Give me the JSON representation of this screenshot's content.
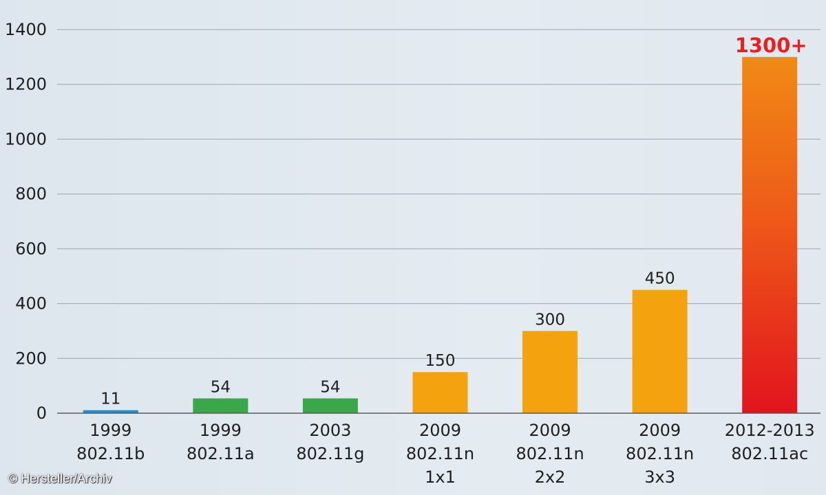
{
  "chart_data": {
    "type": "bar",
    "title": "",
    "xlabel": "",
    "ylabel": "",
    "ylim": [
      0,
      1400
    ],
    "yticks": [
      0,
      200,
      400,
      600,
      800,
      1000,
      1200,
      1400
    ],
    "grid": true,
    "categories": [
      [
        "1999",
        "802.11b"
      ],
      [
        "1999",
        "802.11a"
      ],
      [
        "2003",
        "802.11g"
      ],
      [
        "2009",
        "802.11n",
        "1x1"
      ],
      [
        "2009",
        "802.11n",
        "2x2"
      ],
      [
        "2009",
        "802.11n",
        "3x3"
      ],
      [
        "2012-2013",
        "802.11ac"
      ]
    ],
    "values": [
      11,
      54,
      54,
      150,
      300,
      450,
      1300
    ],
    "data_labels": [
      "11",
      "54",
      "54",
      "150",
      "300",
      "450",
      "1300+"
    ],
    "colors": [
      "#1e8fd0",
      "#3aa84a",
      "#3aa84a",
      "#f5a20f",
      "#f5a20f",
      "#f5a20f",
      "#e8201f"
    ]
  },
  "credit": "© Hersteller/Archiv"
}
